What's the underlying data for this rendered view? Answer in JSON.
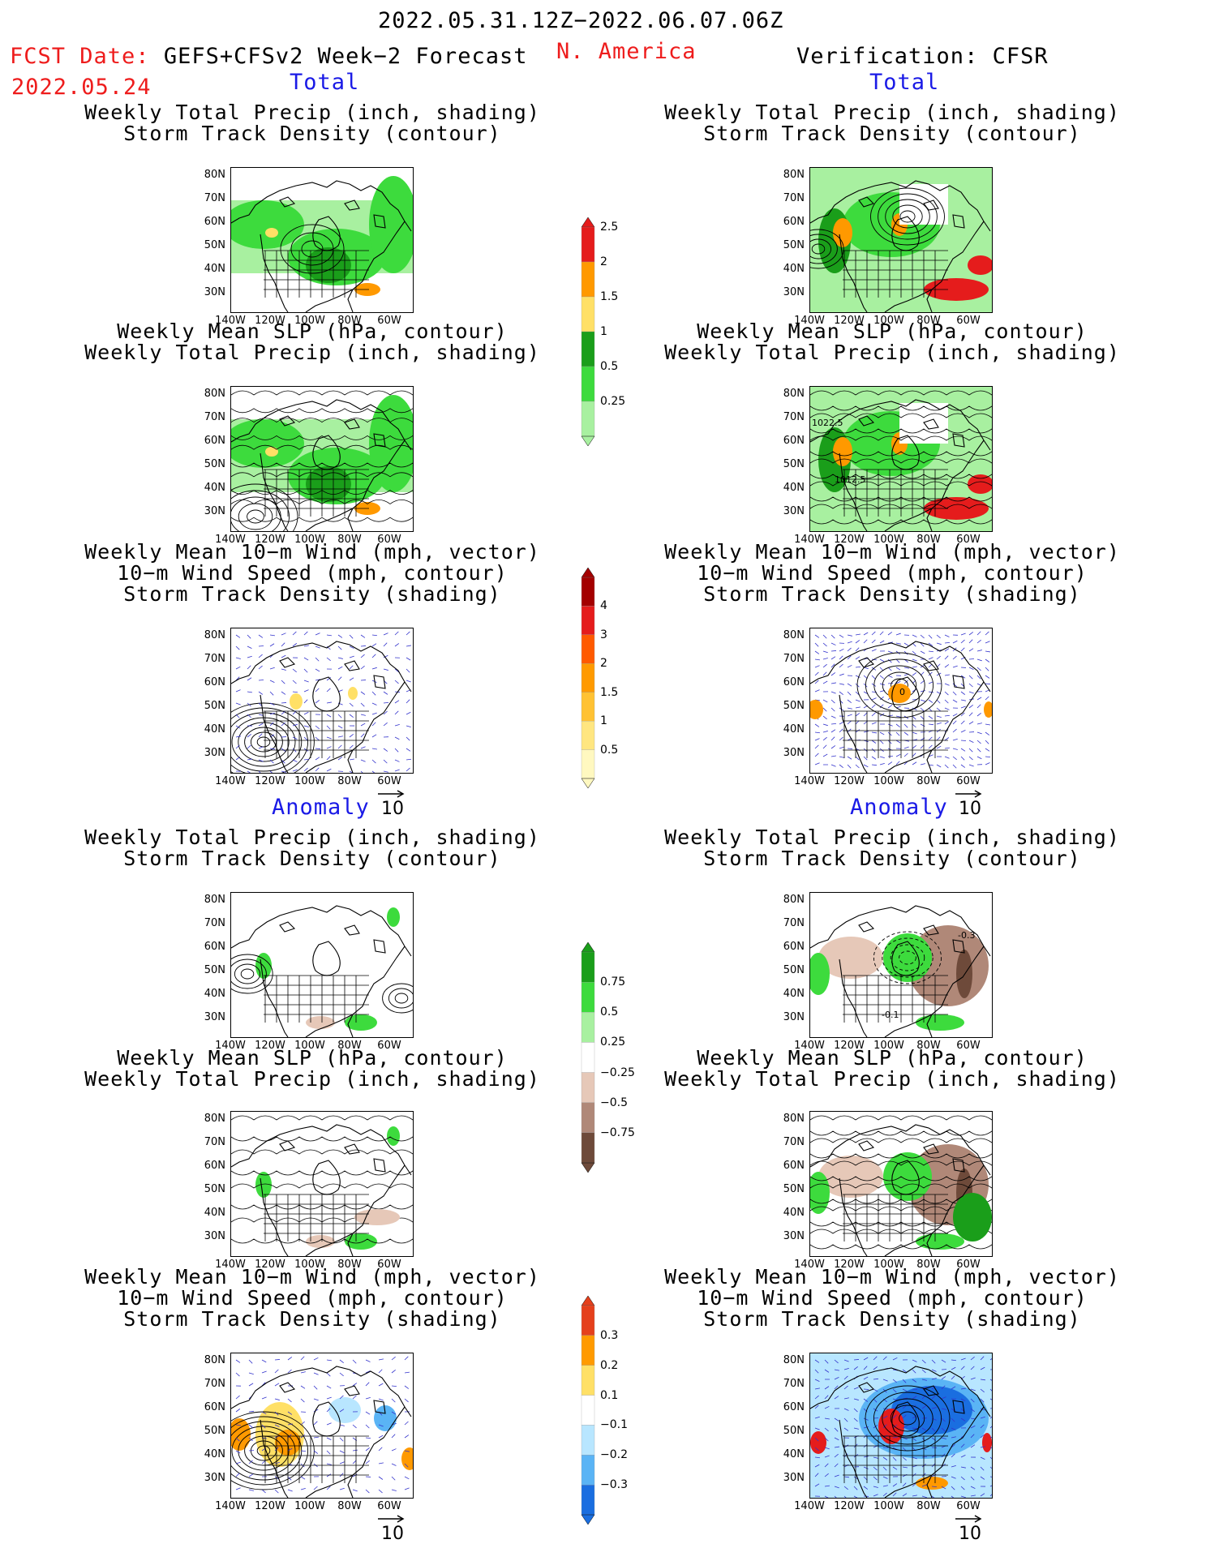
{
  "header": {
    "period": "2022.05.31.12Z−2022.06.07.06Z",
    "fcst_label": "FCST Date:",
    "fcst_model": "GEFS+CFSv2 Week−2 Forecast",
    "fcst_date": "2022.05.24",
    "region": "N. America",
    "verification": "Verification: CFSR"
  },
  "sections": {
    "total": "Total",
    "anomaly": "Anomaly"
  },
  "titles": {
    "precip_storm": "Weekly Total Precip (inch, shading)\nStorm Track Density (contour)",
    "slp_precip": "Weekly Mean SLP (hPa, contour)\nWeekly Total Precip (inch, shading)",
    "wind_storm": "Weekly Mean 10−m Wind (mph, vector)\n10−m Wind Speed (mph, contour)\nStorm Track Density (shading)"
  },
  "axes": {
    "lat_ticks": [
      "80N",
      "70N",
      "60N",
      "50N",
      "40N",
      "30N"
    ],
    "lon_ticks": [
      "140W",
      "120W",
      "100W",
      "80W",
      "60W"
    ]
  },
  "vector_ref": "10",
  "map_labels": {
    "slp_cfsr_1": "1022.5",
    "slp_cfsr_2": "1012.5",
    "anom_cfsr_1": "-0.3",
    "anom_cfsr_2": "-0.1",
    "wind_cfsr": "0"
  },
  "colorbars": {
    "precip_total": {
      "labels": [
        "2.5",
        "2",
        "1.5",
        "1",
        "0.5",
        "0.25"
      ],
      "colors": [
        "#e51c1c",
        "#ff9900",
        "#ffe066",
        "#1a9e1a",
        "#3ddb3d",
        "#a8f0a0"
      ]
    },
    "storm_total": {
      "labels": [
        "4",
        "3",
        "2",
        "1.5",
        "1",
        "0.5"
      ],
      "colors": [
        "#a40000",
        "#e51c1c",
        "#ff5a00",
        "#ff9a00",
        "#ffc233",
        "#ffe680",
        "#fff8c0"
      ]
    },
    "precip_anom": {
      "labels": [
        "0.75",
        "0.5",
        "0.25",
        "−0.25",
        "−0.5",
        "−0.75"
      ],
      "colors": [
        "#1a9e1a",
        "#3ddb3d",
        "#a8f0a0",
        "#ffffff",
        "#e6c8b8",
        "#b08878",
        "#6e4a3a"
      ]
    },
    "storm_anom": {
      "labels": [
        "0.3",
        "0.2",
        "0.1",
        "−0.1",
        "−0.2",
        "−0.3"
      ],
      "colors": [
        "#e5401c",
        "#ff9a00",
        "#ffe066",
        "#ffffff",
        "#b8e6ff",
        "#5ab4f5",
        "#1a6ee0"
      ]
    }
  }
}
